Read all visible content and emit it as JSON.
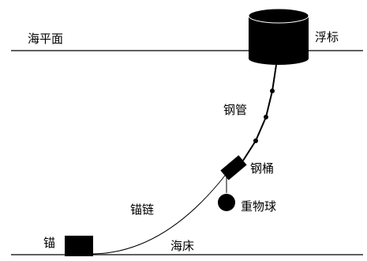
{
  "labels": {
    "sea_surface": "海平面",
    "buoy": "浮标",
    "steel_pipe": "钢管",
    "steel_drum": "钢桶",
    "weight_ball": "重物球",
    "anchor_chain": "锚链",
    "anchor": "锚",
    "seabed": "海床"
  },
  "colors": {
    "ink": "#000000",
    "background": "#ffffff"
  }
}
